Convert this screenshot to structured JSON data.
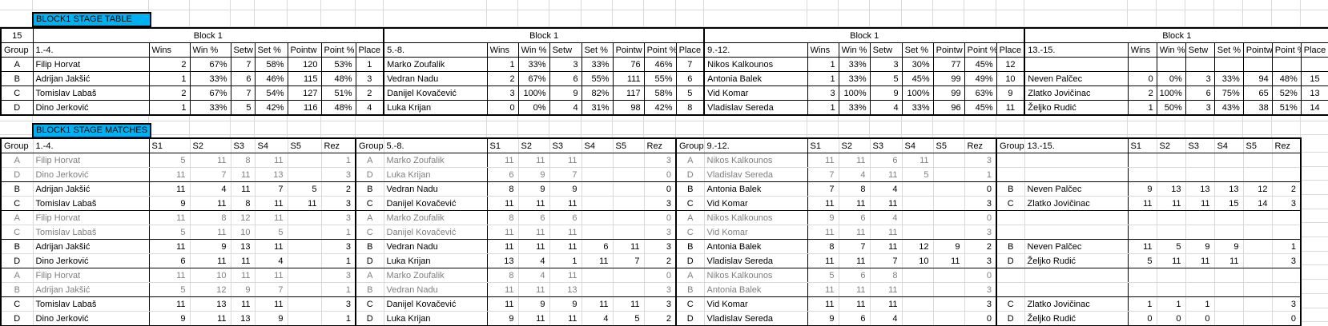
{
  "colors": {
    "title_bg": "#00b0f0",
    "gray_row_text": "#808080",
    "gridline": "#d9d9d9"
  },
  "stage_table": {
    "title": "BLOCK1 STAGE TABLE",
    "corner_value": "15",
    "block_header": "Block 1",
    "group_header": "Group",
    "group_letters": [
      "A",
      "B",
      "C",
      "D"
    ],
    "stat_headers": [
      "Wins",
      "Win %",
      "Setw",
      "Set %",
      "Pointw",
      "Point %",
      "Place"
    ],
    "sections": [
      {
        "range_label": "1.-4.",
        "rows": [
          {
            "name": "Filip Horvat",
            "stats": [
              "2",
              "67%",
              "7",
              "58%",
              "120",
              "53%",
              "1"
            ]
          },
          {
            "name": "Adrijan Jakšić",
            "stats": [
              "1",
              "33%",
              "6",
              "46%",
              "115",
              "48%",
              "3"
            ]
          },
          {
            "name": "Tomislav Labaš",
            "stats": [
              "2",
              "67%",
              "7",
              "54%",
              "127",
              "51%",
              "2"
            ]
          },
          {
            "name": "Dino Jerković",
            "stats": [
              "1",
              "33%",
              "5",
              "42%",
              "116",
              "48%",
              "4"
            ]
          }
        ]
      },
      {
        "range_label": "5.-8.",
        "rows": [
          {
            "name": "Marko Zoufalik",
            "stats": [
              "1",
              "33%",
              "3",
              "33%",
              "76",
              "46%",
              "7"
            ]
          },
          {
            "name": "Vedran Nadu",
            "stats": [
              "2",
              "67%",
              "6",
              "55%",
              "111",
              "55%",
              "6"
            ]
          },
          {
            "name": "Danijel Kovačević",
            "stats": [
              "3",
              "100%",
              "9",
              "82%",
              "117",
              "58%",
              "5"
            ]
          },
          {
            "name": "Luka Krijan",
            "stats": [
              "0",
              "0%",
              "4",
              "31%",
              "98",
              "42%",
              "8"
            ]
          }
        ]
      },
      {
        "range_label": "9.-12.",
        "rows": [
          {
            "name": "Nikos Kalkounos",
            "stats": [
              "1",
              "33%",
              "3",
              "30%",
              "77",
              "45%",
              "12"
            ]
          },
          {
            "name": "Antonia Balek",
            "stats": [
              "1",
              "33%",
              "5",
              "45%",
              "99",
              "49%",
              "10"
            ]
          },
          {
            "name": "Vid Komar",
            "stats": [
              "3",
              "100%",
              "9",
              "100%",
              "99",
              "63%",
              "9"
            ]
          },
          {
            "name": "Vladislav Sereda",
            "stats": [
              "1",
              "33%",
              "4",
              "33%",
              "96",
              "45%",
              "11"
            ]
          }
        ]
      },
      {
        "range_label": "13.-15.",
        "rows": [
          {
            "name": "",
            "stats": [
              "",
              "",
              "",
              "",
              "",
              "",
              ""
            ]
          },
          {
            "name": "Neven Palčec",
            "stats": [
              "0",
              "0%",
              "3",
              "33%",
              "94",
              "48%",
              "15"
            ]
          },
          {
            "name": "Zlatko Jovičinac",
            "stats": [
              "2",
              "100%",
              "6",
              "75%",
              "65",
              "52%",
              "13"
            ]
          },
          {
            "name": "Željko Rudić",
            "stats": [
              "1",
              "50%",
              "3",
              "43%",
              "38",
              "51%",
              "14"
            ]
          }
        ]
      }
    ]
  },
  "matches_table": {
    "title": "BLOCK1 STAGE MATCHES",
    "group_header": "Group",
    "set_headers": [
      "S1",
      "S2",
      "S3",
      "S4",
      "S5",
      "Rez"
    ],
    "sections": [
      {
        "range_label": "1.-4.",
        "rows": [
          {
            "group": "A",
            "name": "Filip Horvat",
            "sets": [
              "5",
              "11",
              "8",
              "11",
              ""
            ],
            "rez": "1",
            "tone": "gray"
          },
          {
            "group": "D",
            "name": "Dino Jerković",
            "sets": [
              "11",
              "7",
              "11",
              "13",
              ""
            ],
            "rez": "3",
            "tone": "gray"
          },
          {
            "group": "B",
            "name": "Adrijan Jakšić",
            "sets": [
              "11",
              "4",
              "11",
              "7",
              "5"
            ],
            "rez": "2",
            "tone": "dark"
          },
          {
            "group": "C",
            "name": "Tomislav Labaš",
            "sets": [
              "9",
              "11",
              "8",
              "11",
              "11"
            ],
            "rez": "3",
            "tone": "dark"
          },
          {
            "group": "A",
            "name": "Filip Horvat",
            "sets": [
              "11",
              "8",
              "12",
              "11",
              ""
            ],
            "rez": "3",
            "tone": "gray"
          },
          {
            "group": "C",
            "name": "Tomislav Labaš",
            "sets": [
              "5",
              "11",
              "10",
              "5",
              ""
            ],
            "rez": "1",
            "tone": "gray"
          },
          {
            "group": "B",
            "name": "Adrijan Jakšić",
            "sets": [
              "11",
              "9",
              "13",
              "11",
              ""
            ],
            "rez": "3",
            "tone": "dark"
          },
          {
            "group": "D",
            "name": "Dino Jerković",
            "sets": [
              "6",
              "11",
              "11",
              "4",
              ""
            ],
            "rez": "1",
            "tone": "dark"
          },
          {
            "group": "A",
            "name": "Filip Horvat",
            "sets": [
              "11",
              "10",
              "11",
              "11",
              ""
            ],
            "rez": "3",
            "tone": "gray"
          },
          {
            "group": "B",
            "name": "Adrijan Jakšić",
            "sets": [
              "5",
              "12",
              "9",
              "7",
              ""
            ],
            "rez": "1",
            "tone": "gray"
          },
          {
            "group": "C",
            "name": "Tomislav Labaš",
            "sets": [
              "11",
              "13",
              "11",
              "11",
              ""
            ],
            "rez": "3",
            "tone": "dark"
          },
          {
            "group": "D",
            "name": "Dino Jerković",
            "sets": [
              "9",
              "11",
              "13",
              "9",
              ""
            ],
            "rez": "1",
            "tone": "dark"
          }
        ]
      },
      {
        "range_label": "5.-8.",
        "rows": [
          {
            "group": "A",
            "name": "Marko Zoufalik",
            "sets": [
              "11",
              "11",
              "11",
              "",
              ""
            ],
            "rez": "3",
            "tone": "gray"
          },
          {
            "group": "D",
            "name": "Luka Krijan",
            "sets": [
              "6",
              "9",
              "7",
              "",
              ""
            ],
            "rez": "0",
            "tone": "gray"
          },
          {
            "group": "B",
            "name": "Vedran Nadu",
            "sets": [
              "8",
              "9",
              "9",
              "",
              ""
            ],
            "rez": "0",
            "tone": "dark"
          },
          {
            "group": "C",
            "name": "Danijel Kovačević",
            "sets": [
              "11",
              "11",
              "11",
              "",
              ""
            ],
            "rez": "3",
            "tone": "dark"
          },
          {
            "group": "A",
            "name": "Marko Zoufalik",
            "sets": [
              "8",
              "6",
              "6",
              "",
              ""
            ],
            "rez": "0",
            "tone": "gray"
          },
          {
            "group": "C",
            "name": "Danijel Kovačević",
            "sets": [
              "11",
              "11",
              "11",
              "",
              ""
            ],
            "rez": "3",
            "tone": "gray"
          },
          {
            "group": "B",
            "name": "Vedran Nadu",
            "sets": [
              "11",
              "11",
              "11",
              "6",
              "11"
            ],
            "rez": "3",
            "tone": "dark"
          },
          {
            "group": "D",
            "name": "Luka Krijan",
            "sets": [
              "13",
              "4",
              "1",
              "11",
              "7"
            ],
            "rez": "2",
            "tone": "dark"
          },
          {
            "group": "A",
            "name": "Marko Zoufalik",
            "sets": [
              "8",
              "4",
              "11",
              "",
              ""
            ],
            "rez": "0",
            "tone": "gray"
          },
          {
            "group": "B",
            "name": "Vedran Nadu",
            "sets": [
              "11",
              "11",
              "13",
              "",
              ""
            ],
            "rez": "3",
            "tone": "gray"
          },
          {
            "group": "C",
            "name": "Danijel Kovačević",
            "sets": [
              "11",
              "9",
              "9",
              "11",
              "11"
            ],
            "rez": "3",
            "tone": "dark"
          },
          {
            "group": "D",
            "name": "Luka Krijan",
            "sets": [
              "9",
              "11",
              "11",
              "4",
              "5"
            ],
            "rez": "2",
            "tone": "dark"
          }
        ]
      },
      {
        "range_label": "9.-12.",
        "rows": [
          {
            "group": "A",
            "name": "Nikos Kalkounos",
            "sets": [
              "11",
              "11",
              "6",
              "11",
              ""
            ],
            "rez": "3",
            "tone": "gray"
          },
          {
            "group": "D",
            "name": "Vladislav Sereda",
            "sets": [
              "7",
              "4",
              "11",
              "5",
              ""
            ],
            "rez": "1",
            "tone": "gray"
          },
          {
            "group": "B",
            "name": "Antonia Balek",
            "sets": [
              "7",
              "8",
              "4",
              "",
              ""
            ],
            "rez": "0",
            "tone": "dark"
          },
          {
            "group": "C",
            "name": "Vid Komar",
            "sets": [
              "11",
              "11",
              "11",
              "",
              ""
            ],
            "rez": "3",
            "tone": "dark"
          },
          {
            "group": "A",
            "name": "Nikos Kalkounos",
            "sets": [
              "9",
              "6",
              "4",
              "",
              ""
            ],
            "rez": "0",
            "tone": "gray"
          },
          {
            "group": "C",
            "name": "Vid Komar",
            "sets": [
              "11",
              "11",
              "11",
              "",
              ""
            ],
            "rez": "3",
            "tone": "gray"
          },
          {
            "group": "B",
            "name": "Antonia Balek",
            "sets": [
              "8",
              "7",
              "11",
              "12",
              "9"
            ],
            "rez": "2",
            "tone": "dark"
          },
          {
            "group": "D",
            "name": "Vladislav Sereda",
            "sets": [
              "11",
              "11",
              "7",
              "10",
              "11"
            ],
            "rez": "3",
            "tone": "dark"
          },
          {
            "group": "A",
            "name": "Nikos Kalkounos",
            "sets": [
              "5",
              "6",
              "8",
              "",
              ""
            ],
            "rez": "0",
            "tone": "gray"
          },
          {
            "group": "B",
            "name": "Antonia Balek",
            "sets": [
              "11",
              "11",
              "11",
              "",
              ""
            ],
            "rez": "3",
            "tone": "gray"
          },
          {
            "group": "C",
            "name": "Vid Komar",
            "sets": [
              "11",
              "11",
              "11",
              "",
              ""
            ],
            "rez": "3",
            "tone": "dark"
          },
          {
            "group": "D",
            "name": "Vladislav Sereda",
            "sets": [
              "9",
              "6",
              "4",
              "",
              ""
            ],
            "rez": "0",
            "tone": "dark"
          }
        ]
      },
      {
        "range_label": "13.-15.",
        "rows": [
          {
            "group": "",
            "name": "",
            "sets": [
              "",
              "",
              "",
              "",
              ""
            ],
            "rez": "",
            "tone": "gray"
          },
          {
            "group": "",
            "name": "",
            "sets": [
              "",
              "",
              "",
              "",
              ""
            ],
            "rez": "",
            "tone": "gray"
          },
          {
            "group": "B",
            "name": "Neven Palčec",
            "sets": [
              "9",
              "13",
              "13",
              "13",
              "12"
            ],
            "rez": "2",
            "tone": "dark"
          },
          {
            "group": "C",
            "name": "Zlatko Jovičinac",
            "sets": [
              "11",
              "11",
              "11",
              "15",
              "14"
            ],
            "rez": "3",
            "tone": "dark"
          },
          {
            "group": "",
            "name": "",
            "sets": [
              "",
              "",
              "",
              "",
              ""
            ],
            "rez": "",
            "tone": "gray"
          },
          {
            "group": "",
            "name": "",
            "sets": [
              "",
              "",
              "",
              "",
              ""
            ],
            "rez": "",
            "tone": "gray"
          },
          {
            "group": "B",
            "name": "Neven Palčec",
            "sets": [
              "11",
              "5",
              "9",
              "9",
              ""
            ],
            "rez": "1",
            "tone": "dark"
          },
          {
            "group": "D",
            "name": "Željko Rudić",
            "sets": [
              "5",
              "11",
              "11",
              "11",
              ""
            ],
            "rez": "3",
            "tone": "dark"
          },
          {
            "group": "",
            "name": "",
            "sets": [
              "",
              "",
              "",
              "",
              ""
            ],
            "rez": "",
            "tone": "gray"
          },
          {
            "group": "",
            "name": "",
            "sets": [
              "",
              "",
              "",
              "",
              ""
            ],
            "rez": "",
            "tone": "gray"
          },
          {
            "group": "C",
            "name": "Zlatko Jovičinac",
            "sets": [
              "1",
              "1",
              "1",
              "",
              ""
            ],
            "rez": "3",
            "tone": "dark"
          },
          {
            "group": "D",
            "name": "Željko Rudić",
            "sets": [
              "0",
              "0",
              "0",
              "",
              ""
            ],
            "rez": "0",
            "tone": "dark"
          }
        ]
      }
    ]
  }
}
